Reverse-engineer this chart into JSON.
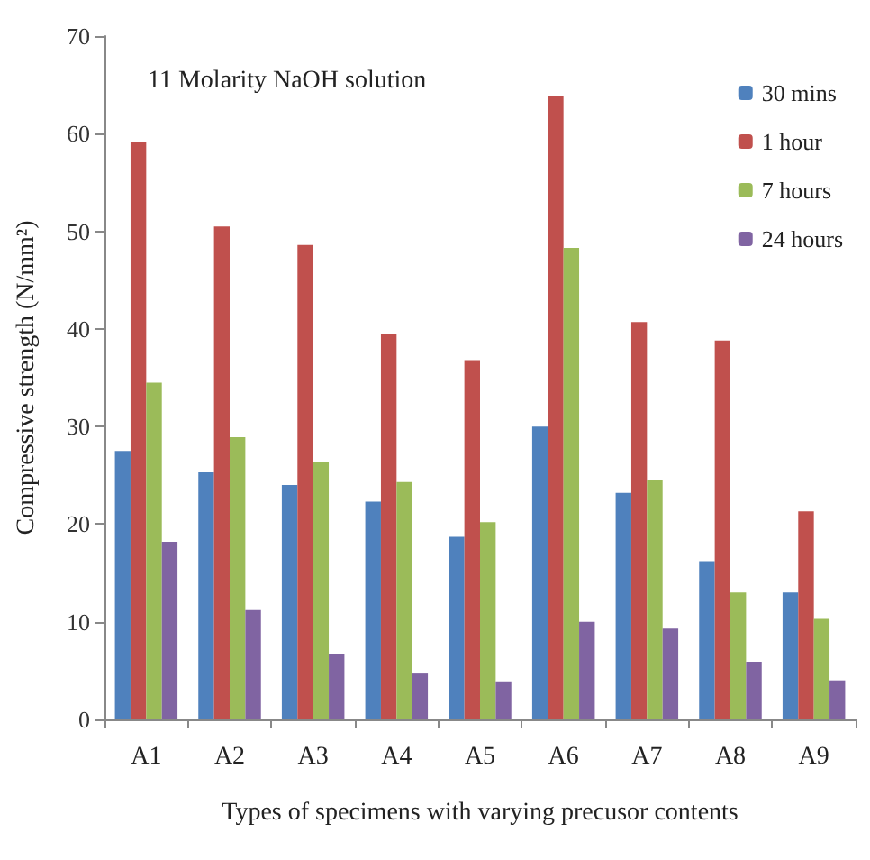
{
  "chart_data": {
    "type": "bar",
    "xlabel": "Types of specimens with varying precusor contents",
    "ylabel": "Compressive strength (N/mm²)",
    "annotations": [
      "11 Molarity NaOH solution"
    ],
    "categories": [
      "A1",
      "A2",
      "A3",
      "A4",
      "A5",
      "A6",
      "A7",
      "A8",
      "A9"
    ],
    "series": [
      {
        "name": "30 mins",
        "color": "#4f81bd",
        "values": [
          27.5,
          25.3,
          24,
          22.3,
          18.7,
          30,
          23.2,
          16.2,
          13
        ]
      },
      {
        "name": "1 hour",
        "color": "#c0504d",
        "values": [
          59.2,
          50.5,
          48.6,
          39.5,
          36.8,
          63.9,
          40.7,
          38.8,
          21.3
        ]
      },
      {
        "name": "7 hours",
        "color": "#9bbb59",
        "values": [
          34.5,
          28.9,
          26.4,
          24.3,
          20.2,
          48.3,
          24.5,
          13,
          10.3
        ]
      },
      {
        "name": "24 hours",
        "color": "#8064a2",
        "values": [
          18.2,
          11.2,
          6.7,
          4.7,
          3.9,
          10,
          9.3,
          5.9,
          4
        ]
      }
    ],
    "ylim": [
      0,
      70
    ],
    "yticks": [
      0,
      10,
      20,
      30,
      40,
      50,
      60,
      70
    ],
    "grid": false,
    "legend": "top right"
  }
}
